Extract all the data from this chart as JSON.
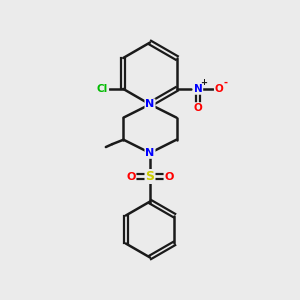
{
  "bg_color": "#ebebeb",
  "bond_color": "#1a1a1a",
  "atom_colors": {
    "N": "#0000ff",
    "O": "#ff0000",
    "S": "#cccc00",
    "Cl": "#00bb00",
    "C": "#1a1a1a"
  }
}
